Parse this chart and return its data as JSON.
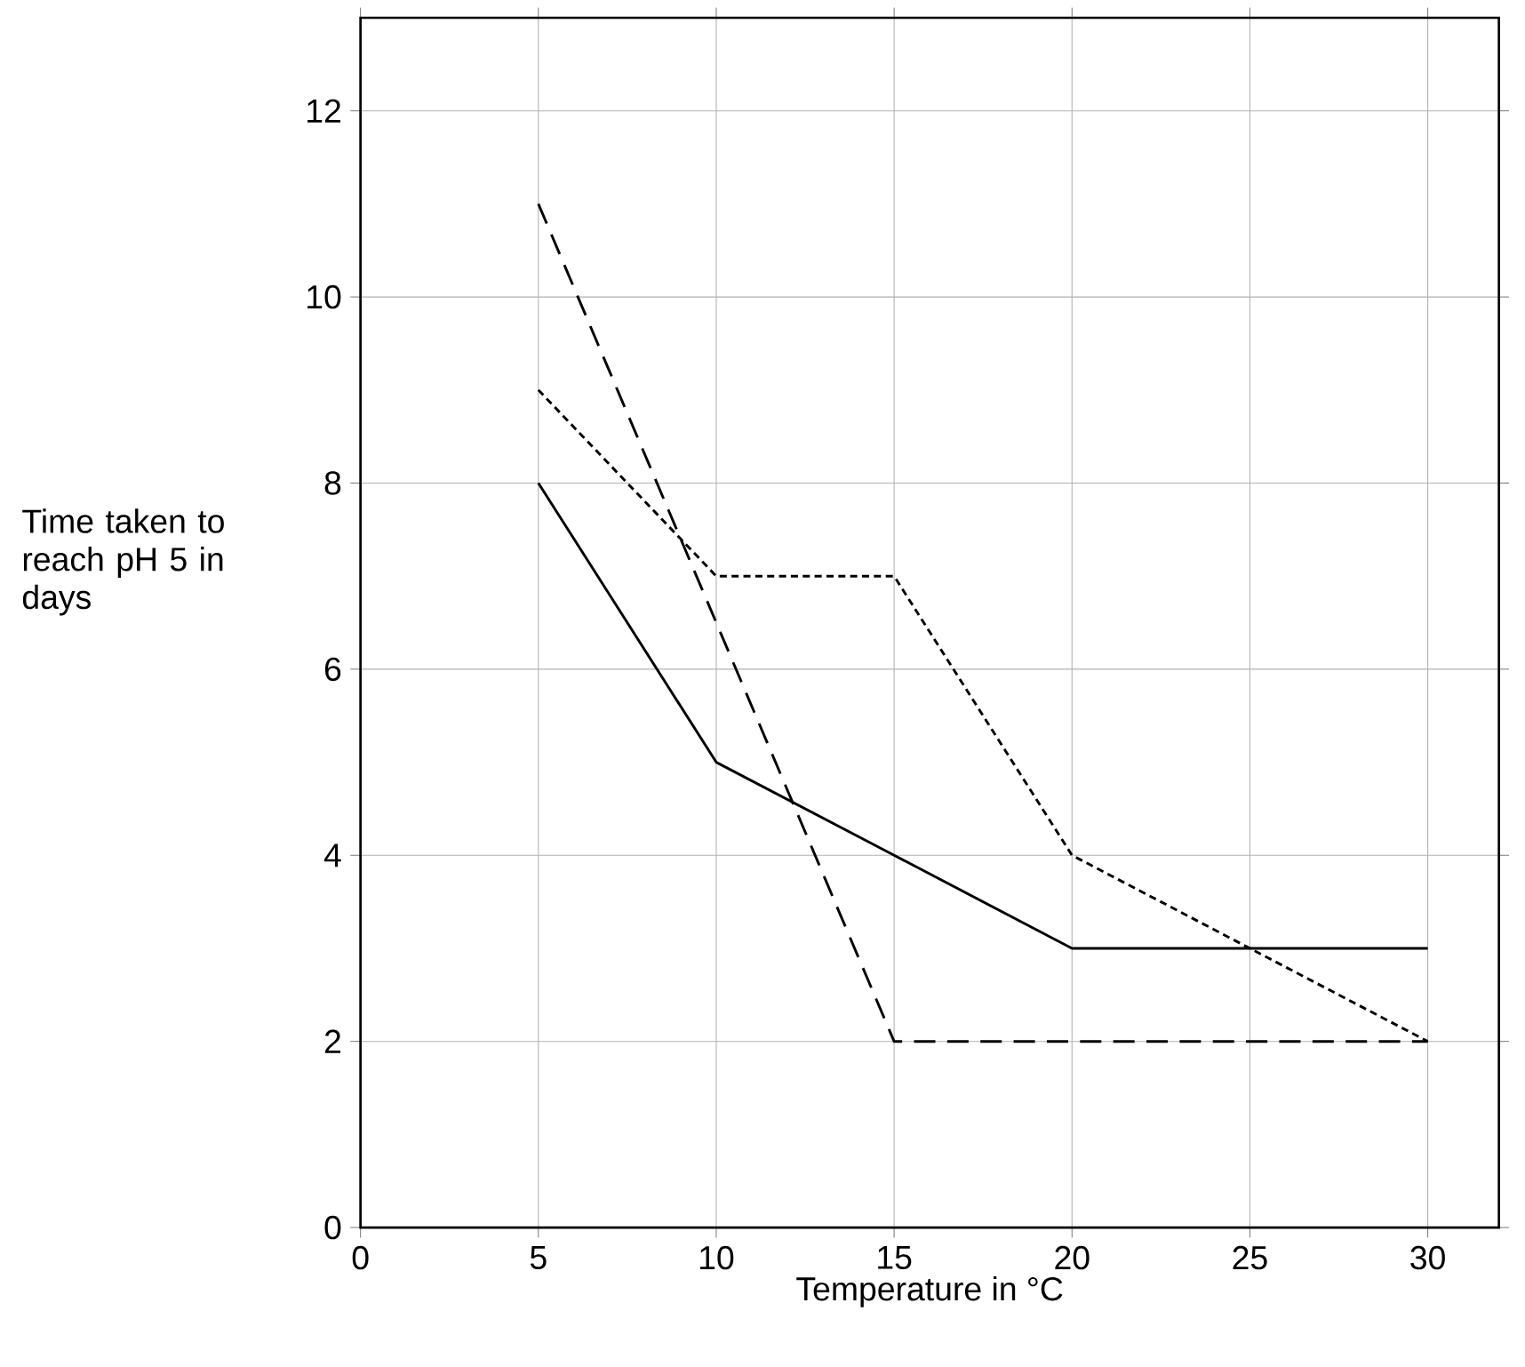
{
  "chart_data": {
    "type": "line",
    "xlabel": "Temperature in °C",
    "ylabel": "Time taken to reach pH 5 in days",
    "xlim": [
      0,
      32
    ],
    "ylim": [
      0,
      13
    ],
    "xticks": [
      0,
      5,
      10,
      15,
      20,
      25,
      30
    ],
    "yticks": [
      0,
      2,
      4,
      6,
      8,
      10,
      12
    ],
    "grid": true,
    "marker": "none",
    "series": [
      {
        "color": "#000000",
        "line_style": "solid",
        "x": [
          5,
          10,
          15,
          20,
          30
        ],
        "values": [
          8,
          5,
          4,
          3,
          3
        ]
      },
      {
        "color": "#000000",
        "line_style": "dotted",
        "x": [
          5,
          10,
          15,
          20,
          30
        ],
        "values": [
          9,
          7,
          7,
          4,
          2
        ]
      },
      {
        "color": "#000000",
        "line_style": "dashed",
        "x": [
          5,
          15,
          30
        ],
        "values": [
          11,
          2,
          2
        ]
      }
    ]
  }
}
